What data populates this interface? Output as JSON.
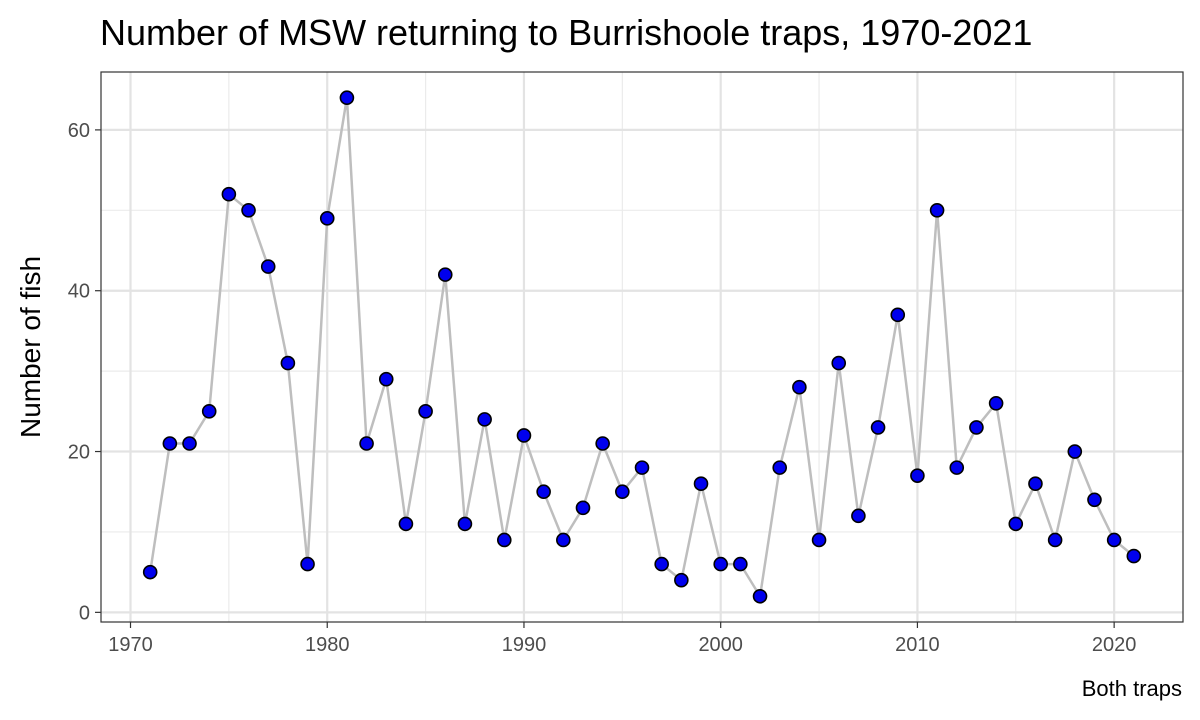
{
  "chart_data": {
    "type": "line",
    "title": "Number of MSW returning to Burrishoole traps, 1970-2021",
    "xlabel": "",
    "ylabel": "Number of fish",
    "caption": "Both traps",
    "xlim": [
      1968.5,
      2023.5
    ],
    "ylim": [
      -1.2,
      67.2
    ],
    "x_ticks": [
      1970,
      1980,
      1990,
      2000,
      2010,
      2020
    ],
    "y_ticks": [
      0,
      20,
      40,
      60
    ],
    "x_tick_labels": [
      "1970",
      "1980",
      "1990",
      "2000",
      "2010",
      "2020"
    ],
    "y_tick_labels": [
      "0",
      "20",
      "40",
      "60"
    ],
    "grid": true,
    "line_color": "#bebebe",
    "point_color": "#0000ee",
    "point_edge_color": "#000000",
    "series": [
      {
        "x": [
          1971,
          1972,
          1973,
          1974,
          1975,
          1976,
          1977,
          1978,
          1979,
          1980,
          1981,
          1982,
          1983,
          1984,
          1985,
          1986,
          1987,
          1988,
          1989,
          1990,
          1991,
          1992,
          1993,
          1994,
          1995,
          1996,
          1997,
          1998,
          1999,
          2000,
          2001,
          2002,
          2003,
          2004,
          2005,
          2006,
          2007,
          2008,
          2009,
          2010,
          2011,
          2012,
          2013,
          2014,
          2015,
          2016,
          2017,
          2018,
          2019,
          2020,
          2021
        ],
        "y": [
          5,
          21,
          21,
          25,
          52,
          50,
          43,
          31,
          6,
          49,
          64,
          21,
          29,
          11,
          25,
          42,
          11,
          24,
          9,
          22,
          15,
          9,
          13,
          21,
          15,
          18,
          6,
          4,
          16,
          6,
          6,
          2,
          18,
          28,
          9,
          31,
          12,
          23,
          37,
          17,
          50,
          18,
          23,
          26,
          11,
          16,
          9,
          20,
          14,
          9,
          7
        ]
      }
    ]
  }
}
